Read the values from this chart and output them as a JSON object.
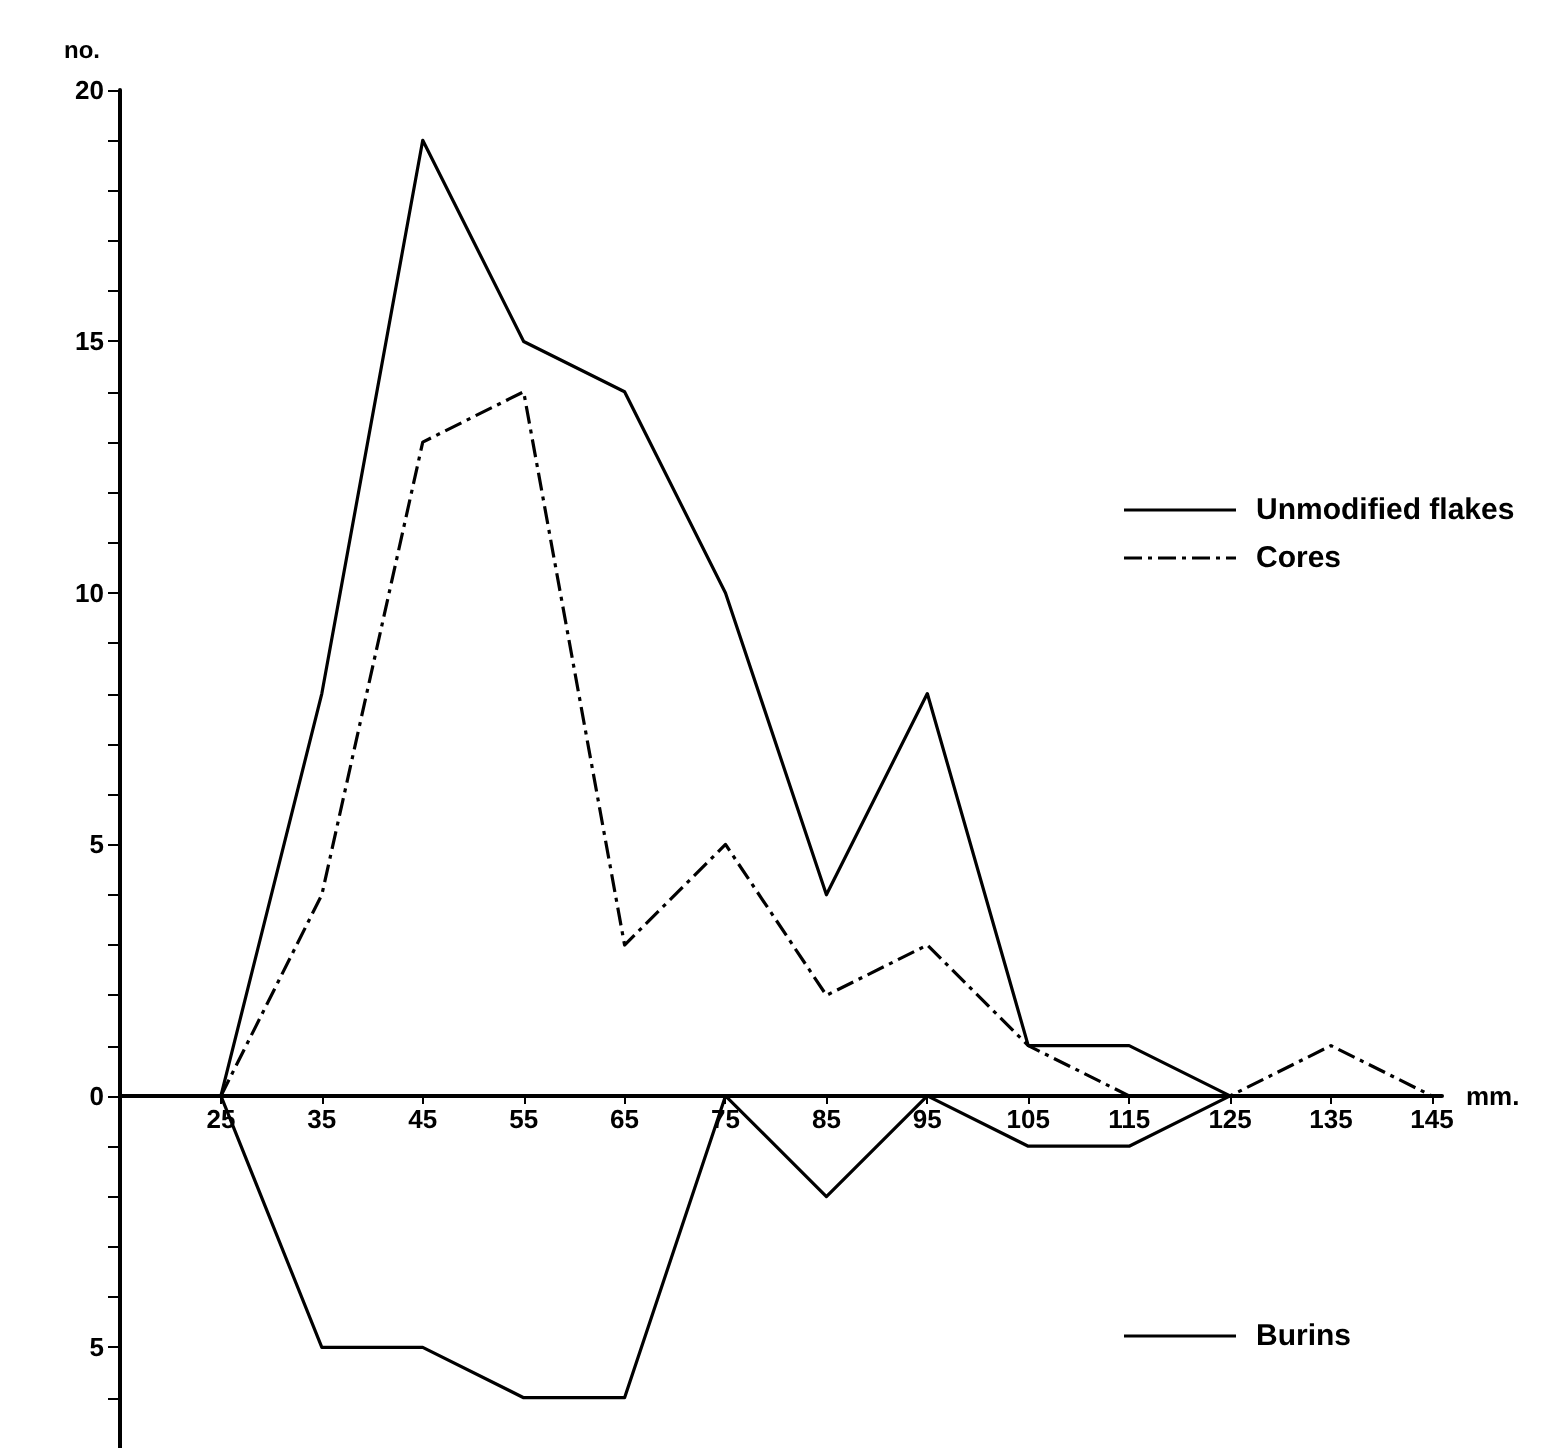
{
  "chart_data": {
    "type": "line",
    "xlabel": "mm.",
    "ylabel": "no.",
    "x": [
      25,
      35,
      45,
      55,
      65,
      75,
      85,
      95,
      105,
      115,
      125,
      135,
      145
    ],
    "series": [
      {
        "name": "Unmodified flakes",
        "color": "#000000",
        "line_style": "solid",
        "values": [
          0,
          8,
          19,
          15,
          14,
          10,
          4,
          8,
          1,
          1,
          0,
          null,
          null
        ]
      },
      {
        "name": "Cores",
        "color": "#000000",
        "line_style": "dashdot",
        "values": [
          0,
          4,
          13,
          14,
          3,
          5,
          2,
          3,
          1,
          0,
          0,
          1,
          0
        ]
      },
      {
        "name": "Burins",
        "color": "#000000",
        "line_style": "solid",
        "values": [
          0,
          -5,
          -5,
          -6,
          -6,
          0,
          -2,
          0,
          -1,
          -1,
          0,
          null,
          null
        ]
      }
    ],
    "xlim": [
      15,
      146
    ],
    "xticks": [
      25,
      35,
      45,
      55,
      65,
      75,
      85,
      95,
      105,
      115,
      125,
      135,
      145
    ],
    "ylim": [
      -7,
      20
    ],
    "yticks": [
      {
        "value": -7,
        "label": null
      },
      {
        "value": -6,
        "label": null
      },
      {
        "value": -5,
        "label": "5"
      },
      {
        "value": -4,
        "label": null
      },
      {
        "value": -3,
        "label": null
      },
      {
        "value": -2,
        "label": null
      },
      {
        "value": -1,
        "label": null
      },
      0,
      {
        "value": 1,
        "label": null
      },
      {
        "value": 2,
        "label": null
      },
      {
        "value": 3,
        "label": null
      },
      {
        "value": 4,
        "label": null
      },
      5,
      {
        "value": 6,
        "label": null
      },
      {
        "value": 7,
        "label": null
      },
      {
        "value": 8,
        "label": null
      },
      {
        "value": 9,
        "label": null
      },
      10,
      {
        "value": 11,
        "label": null
      },
      {
        "value": 12,
        "label": null
      },
      {
        "value": 13,
        "label": null
      },
      {
        "value": 14,
        "label": null
      },
      15,
      {
        "value": 16,
        "label": null
      },
      {
        "value": 17,
        "label": null
      },
      {
        "value": 18,
        "label": null
      },
      {
        "value": 19,
        "label": null
      },
      20
    ],
    "grid": false,
    "legend": "right",
    "marker": "none"
  }
}
